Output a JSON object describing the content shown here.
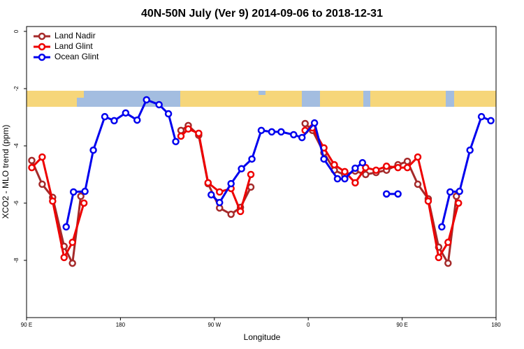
{
  "chart_data": {
    "type": "line",
    "title": "40N-50N July (Ver 9)   2014-09-06 to 2018-12-31",
    "xlabel": "Longitude",
    "ylabel": "XCO2 - MLO trend (ppm)",
    "xlim": [
      90,
      540
    ],
    "ylim": [
      -10,
      0.17
    ],
    "xticks": [
      {
        "value": 90,
        "label": "90 E"
      },
      180,
      {
        "value": 270,
        "label": "90 W"
      },
      {
        "value": 360,
        "label": "0"
      },
      {
        "value": 450,
        "label": "90 E"
      },
      {
        "value": 540,
        "label": "180"
      }
    ],
    "yticks": [
      0,
      -2,
      -4,
      -6,
      -8
    ],
    "legend": "top-left",
    "series": [
      {
        "name": "Land Nadir",
        "color": "#a52a2a",
        "x": [
          95,
          105,
          115,
          126,
          134,
          142,
          null,
          238,
          245,
          255,
          264,
          275,
          286,
          295,
          305,
          null,
          357,
          364,
          375,
          385,
          395,
          405,
          415,
          425,
          435,
          446,
          455,
          465,
          475,
          485,
          494,
          502
        ],
        "values": [
          -4.51,
          -5.34,
          -5.8,
          -7.51,
          -8.1,
          -5.76,
          null,
          -3.46,
          -3.29,
          -3.63,
          -5.32,
          -6.17,
          -6.39,
          -6.15,
          -5.44,
          null,
          -3.22,
          -3.46,
          -4.24,
          -4.85,
          -5.02,
          -4.88,
          -5.0,
          -4.93,
          -4.85,
          -4.66,
          -4.54,
          -5.34,
          -5.85,
          -7.54,
          -8.1,
          -5.76
        ]
      },
      {
        "name": "Land Glint",
        "color": "#ee0000",
        "x": [
          95,
          105,
          115,
          126,
          134,
          145,
          null,
          238,
          245,
          255,
          264,
          275,
          286,
          295,
          305,
          null,
          357,
          364,
          375,
          385,
          395,
          405,
          415,
          425,
          435,
          446,
          455,
          465,
          475,
          485,
          494,
          504
        ],
        "values": [
          -4.76,
          -4.39,
          -5.93,
          -7.9,
          -7.37,
          -6.0,
          null,
          -3.66,
          -3.41,
          -3.56,
          -5.29,
          -5.61,
          -5.49,
          -6.29,
          -5.0,
          null,
          -3.46,
          -3.37,
          -4.07,
          -4.66,
          -4.9,
          -5.29,
          -4.76,
          -4.85,
          -4.71,
          -4.76,
          -4.76,
          -4.39,
          -5.93,
          -7.9,
          -7.37,
          -6.0
        ]
      },
      {
        "name": "Ocean Glint",
        "color": "#0000ee",
        "x": [
          128,
          135,
          146,
          154,
          165,
          174,
          185,
          196,
          205,
          217,
          226,
          233,
          null,
          267,
          275,
          286,
          296,
          306,
          315,
          325,
          334,
          346,
          354,
          366,
          375,
          388,
          395,
          405,
          412,
          null,
          435,
          446,
          null,
          488,
          496,
          505,
          515,
          526,
          535
        ],
        "values": [
          -6.83,
          -5.61,
          -5.59,
          -4.15,
          -2.98,
          -3.12,
          -2.85,
          -3.1,
          -2.39,
          -2.56,
          -2.88,
          -3.85,
          null,
          -5.71,
          -5.98,
          -5.32,
          -4.8,
          -4.46,
          -3.46,
          -3.51,
          -3.51,
          -3.61,
          -3.71,
          -3.2,
          -4.46,
          -5.15,
          -5.15,
          -4.78,
          -4.59,
          null,
          -5.68,
          -5.68,
          null,
          -6.83,
          -5.61,
          -5.59,
          -4.15,
          -2.98,
          -3.12
        ]
      }
    ]
  }
}
